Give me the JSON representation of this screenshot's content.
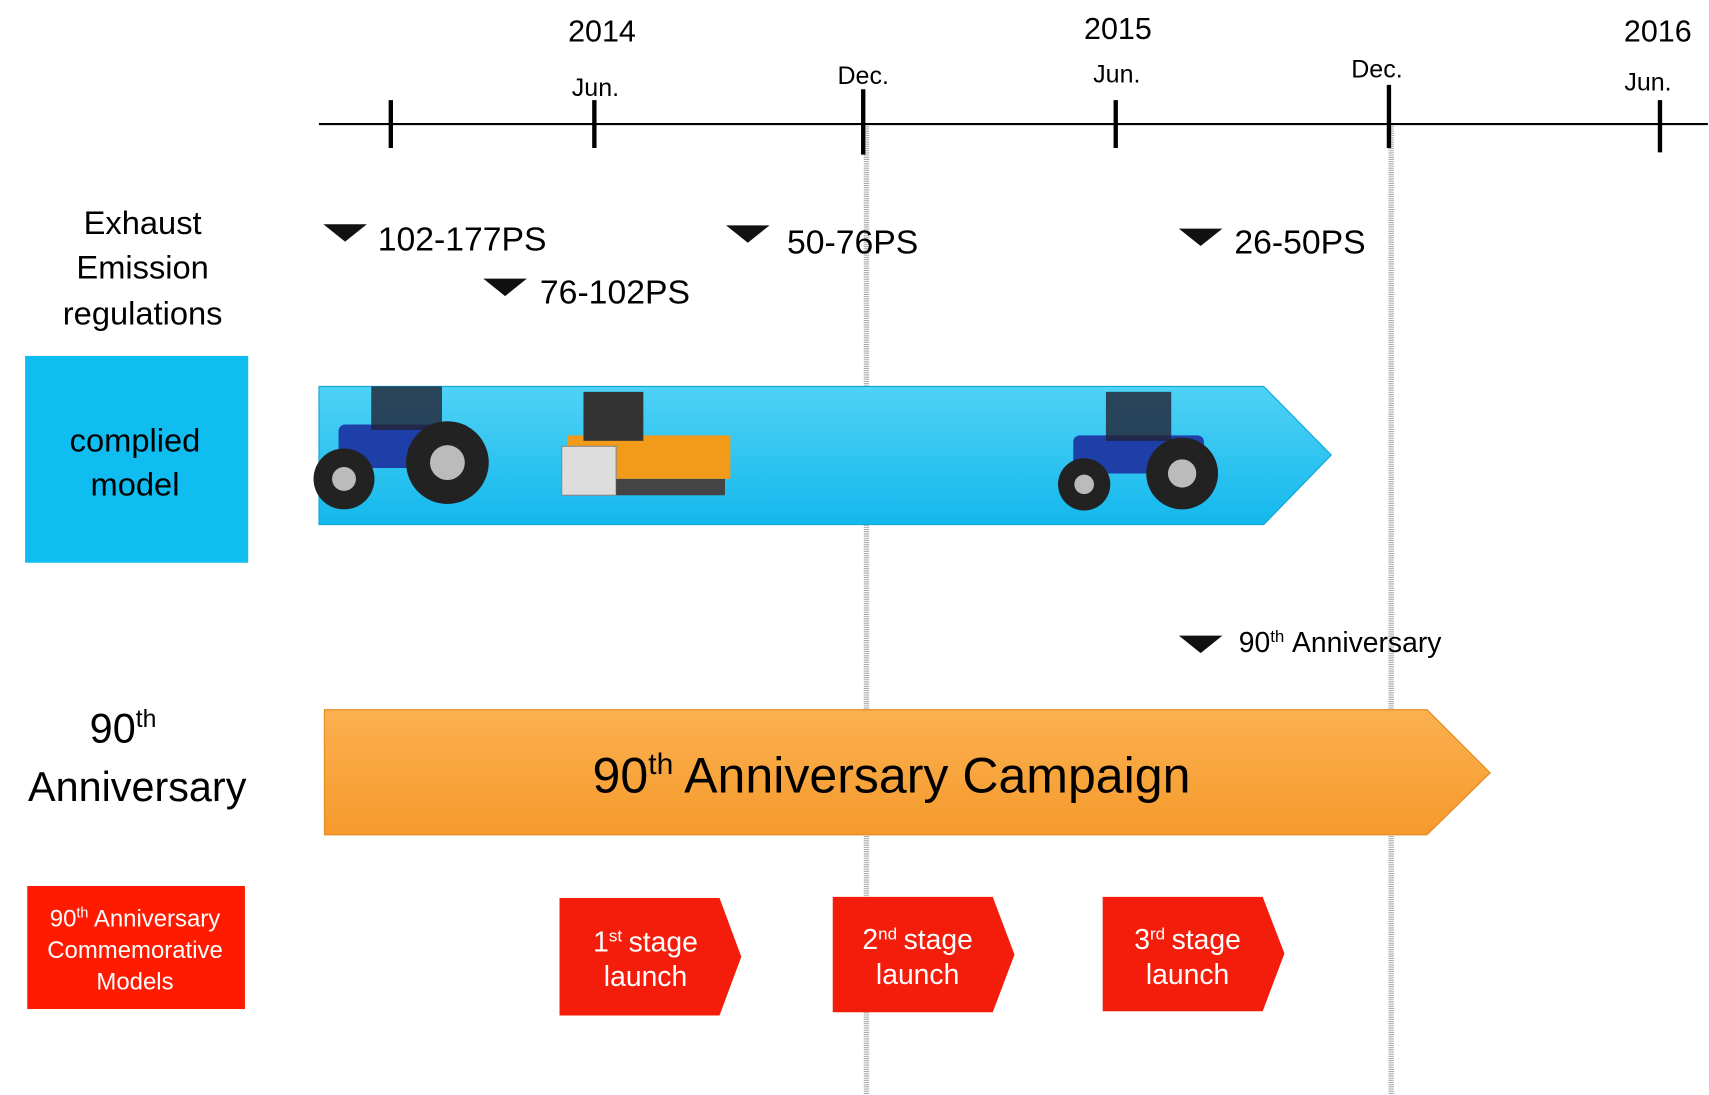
{
  "timeline": {
    "years": [
      "2014",
      "2015",
      "2016"
    ],
    "months": [
      "Jun.",
      "Dec.",
      "Jun.",
      "Dec.",
      "Jun."
    ]
  },
  "emission": {
    "label": [
      "Exhaust",
      "Emission",
      "regulations"
    ],
    "milestones": [
      "102-177PS",
      "76-102PS",
      "50-76PS",
      "26-50PS"
    ],
    "bar_label": [
      "complied",
      "model"
    ]
  },
  "anniversary": {
    "label": {
      "number": "90",
      "sup": "th",
      "text": "Anniversary"
    },
    "marker": {
      "number": "90",
      "sup": "th",
      "text": "Anniversary"
    },
    "campaign": {
      "number": "90",
      "sup": "th",
      "text": "Anniversary Campaign"
    }
  },
  "models": {
    "label": {
      "number": "90",
      "sup": "th",
      "lines": [
        "Anniversary",
        "Commemorative",
        "Models"
      ]
    },
    "stages": [
      {
        "number": "1",
        "sup": "st",
        "word": "stage",
        "line2": "launch"
      },
      {
        "number": "2",
        "sup": "nd",
        "word": "stage",
        "line2": "launch"
      },
      {
        "number": "3",
        "sup": "rd",
        "word": "stage",
        "line2": "launch"
      }
    ]
  }
}
